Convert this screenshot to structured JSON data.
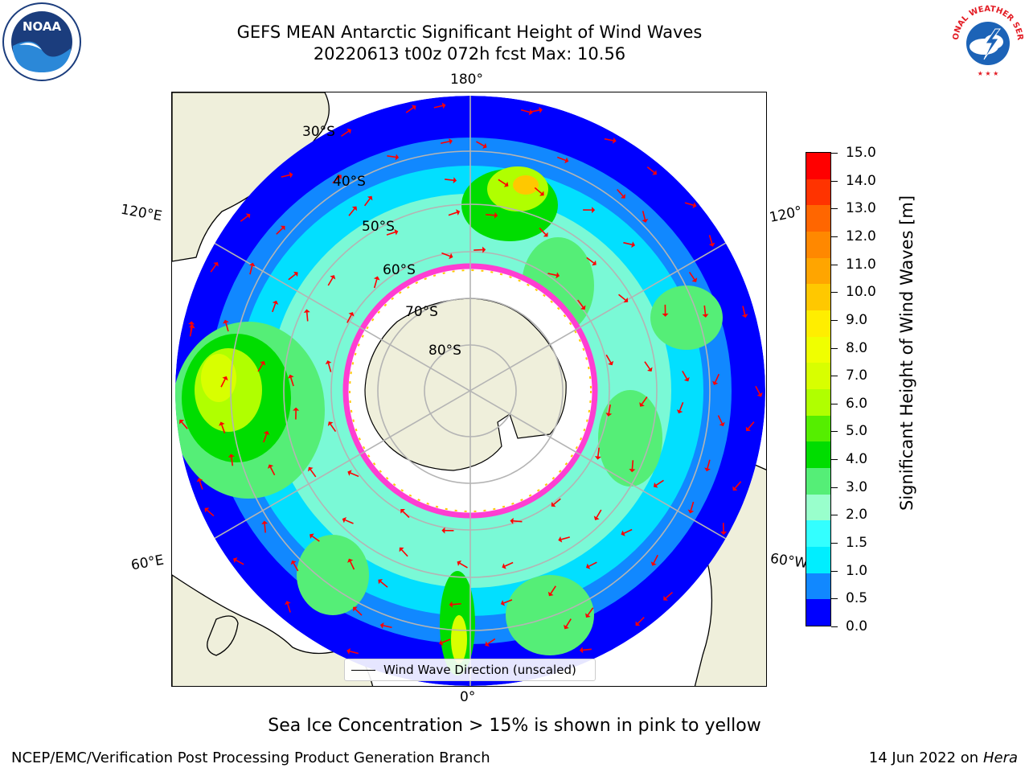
{
  "title": {
    "line1": "GEFS MEAN Antarctic Significant Height of Wind Waves",
    "line2": "20220613 t00z 072h fcst   Max: 10.56"
  },
  "map": {
    "projection": "south polar stereographic",
    "longitude_labels": {
      "top": "180°",
      "upper_left": "120°E",
      "upper_right": "120°",
      "lower_left": "60°E",
      "lower_right": "60°W",
      "bottom": "0°"
    },
    "latitude_labels": [
      "30°S",
      "40°S",
      "50°S",
      "60°S",
      "70°S",
      "80°S"
    ],
    "legend": "Wind Wave Direction (unscaled)",
    "colors": {
      "land": "#efefdb",
      "sea_ice_edge": "#ff3dd2",
      "wind_arrows": "#ff0000",
      "graticule": "#b4b4b4"
    }
  },
  "colorbar": {
    "label": "Significant Height of Wind Waves [m]",
    "ticks": [
      "15.0",
      "14.0",
      "13.0",
      "12.0",
      "11.0",
      "10.0",
      "9.0",
      "8.0",
      "7.0",
      "6.0",
      "5.0",
      "4.0",
      "3.0",
      "2.0",
      "1.5",
      "1.0",
      "0.5",
      "0.0"
    ],
    "colors_top_to_bottom": [
      "#ff0000",
      "#ff3300",
      "#ff6600",
      "#ff8800",
      "#ffa500",
      "#ffc800",
      "#ffee00",
      "#f0ff00",
      "#d8ff00",
      "#b0ff00",
      "#55ee00",
      "#00dd00",
      "#55ee77",
      "#99ffcc",
      "#33ffff",
      "#00eeff",
      "#1188ff",
      "#0000ff"
    ]
  },
  "caption": "Sea Ice Concentration > 15% is shown in pink to yellow",
  "footer": {
    "left": "NCEP/EMC/Verification Post Processing Product Generation Branch",
    "right_date": "14 Jun 2022 on",
    "right_host": "Hera"
  },
  "logos": {
    "noaa_text": "NOAA",
    "nws_text": "NATIONAL WEATHER SERVICE"
  }
}
